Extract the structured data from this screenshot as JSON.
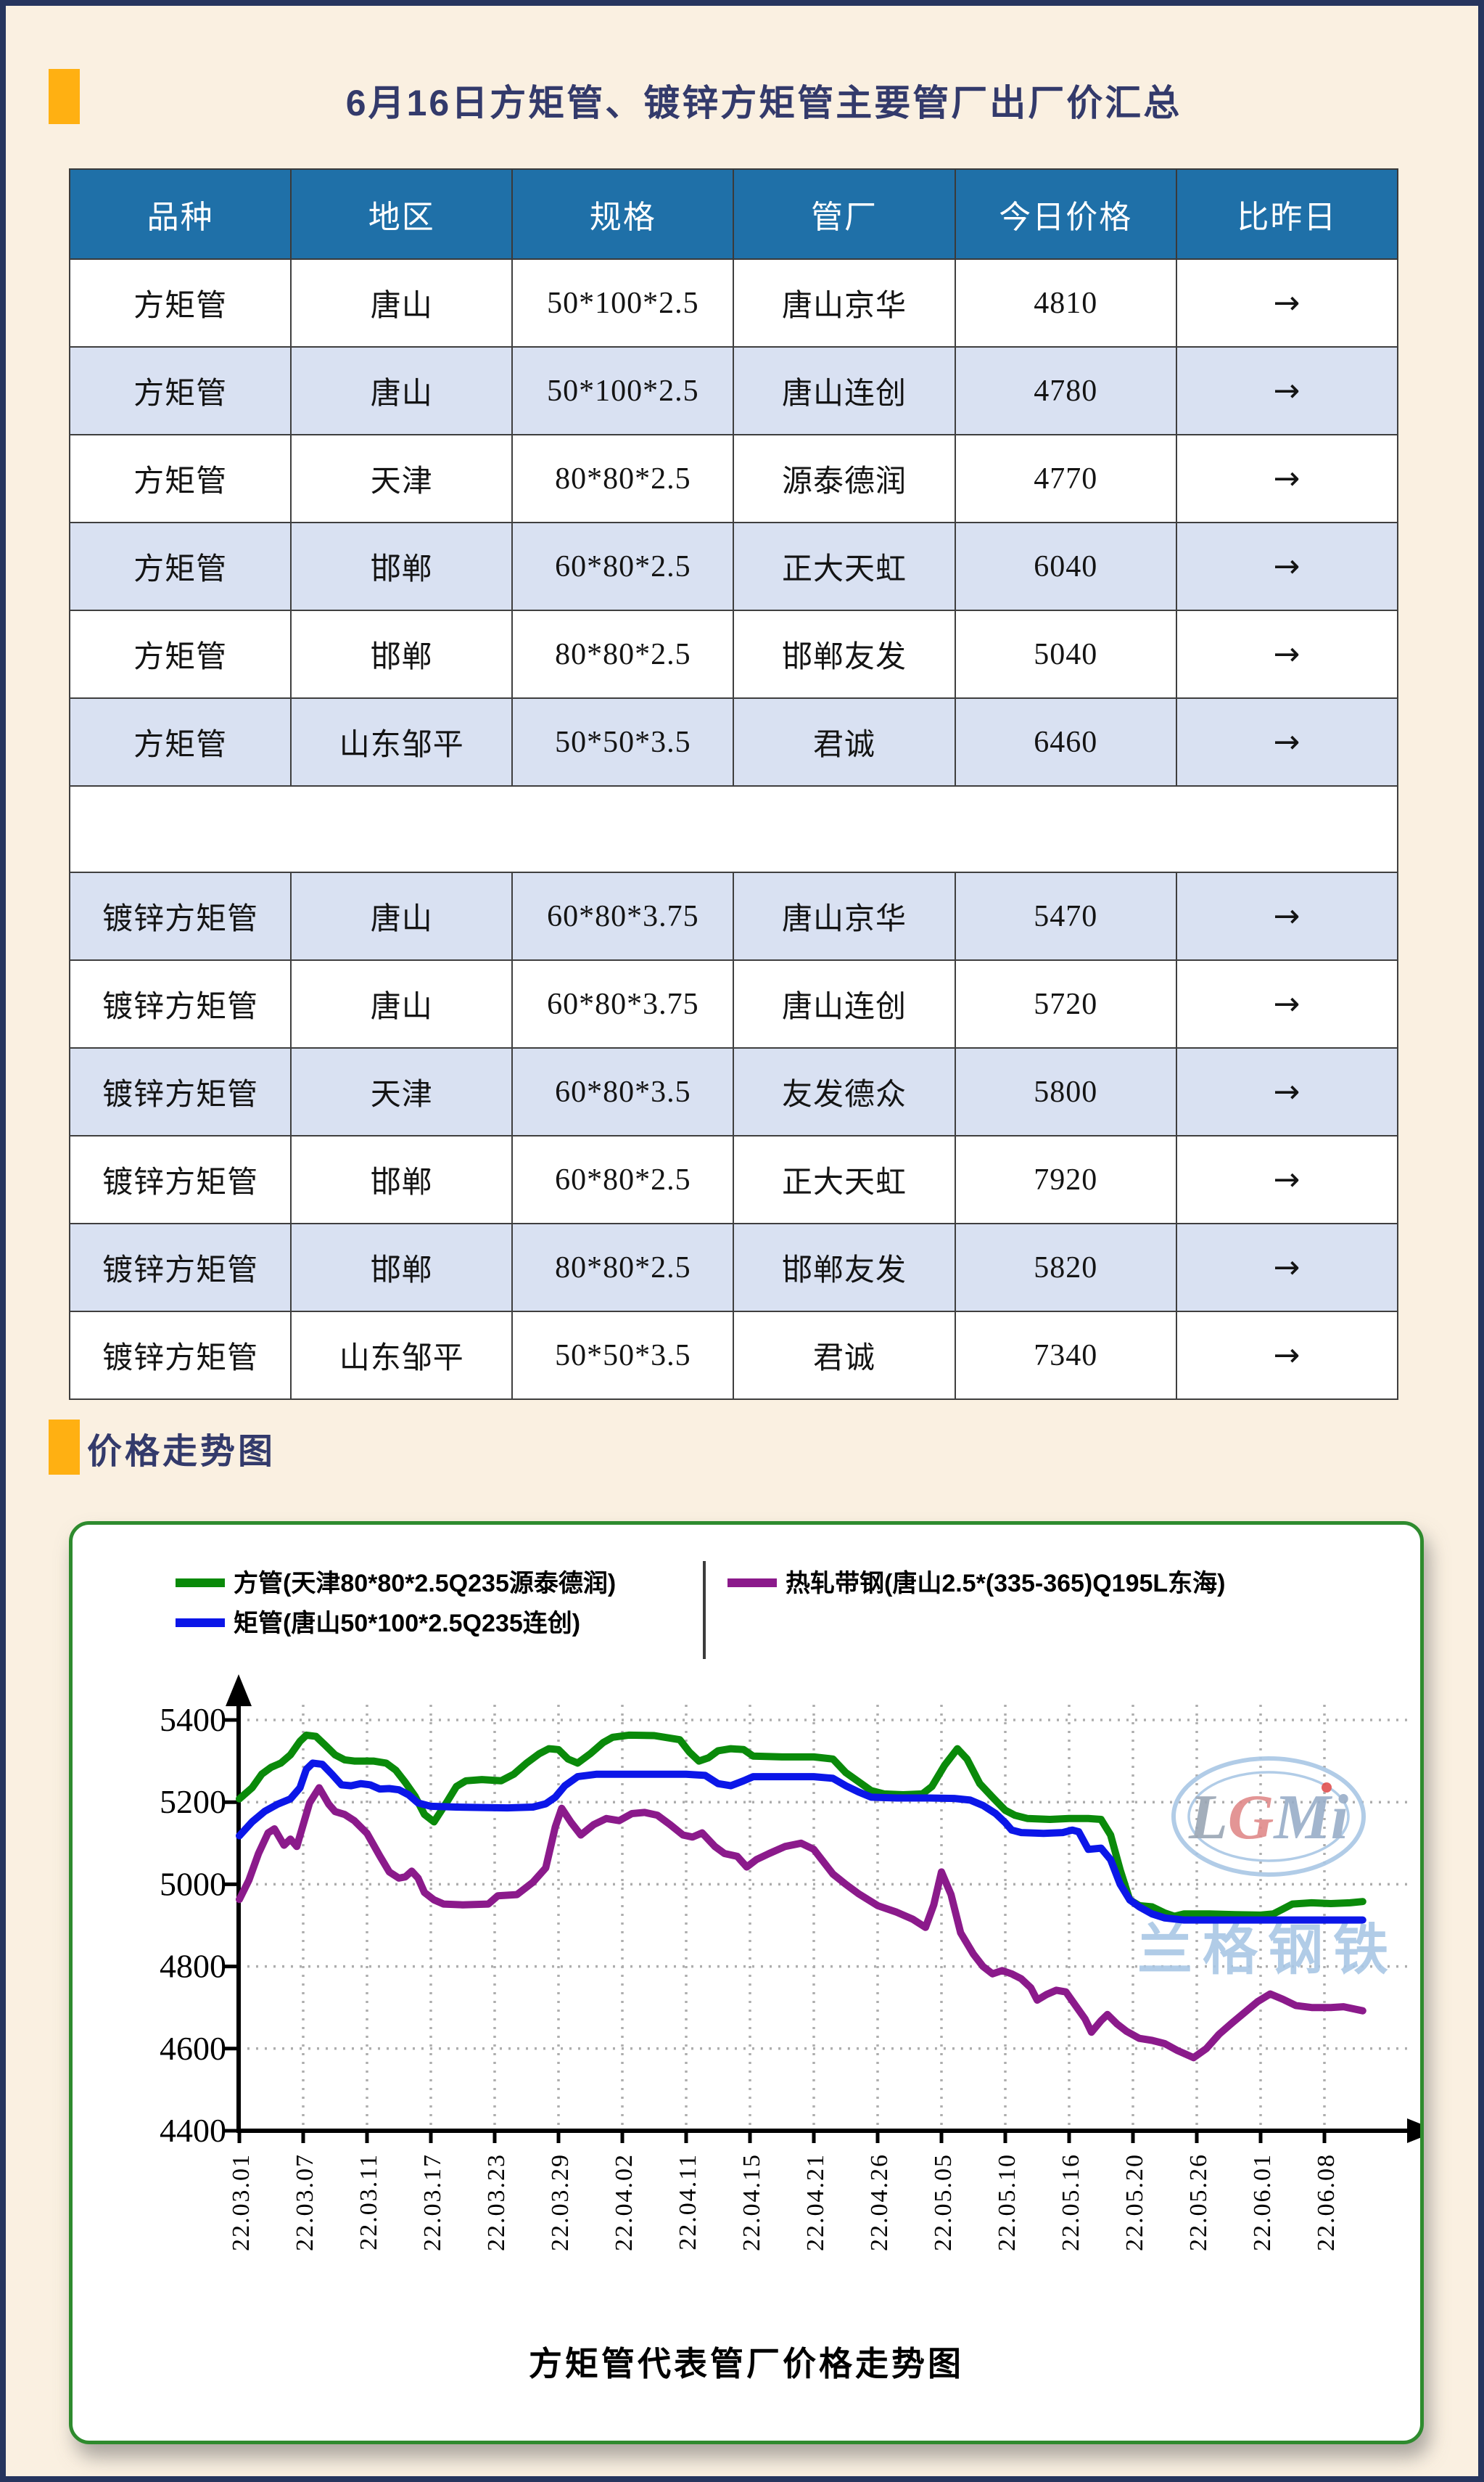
{
  "page": {
    "title": "6月16日方矩管、镀锌方矩管主要管厂出厂价汇总",
    "section2_title": "价格走势图",
    "colors": {
      "background": "#FAF0E1",
      "page_border": "#26355E",
      "accent_orange": "#FFB012",
      "title_navy": "#333A6B",
      "table_header_bg": "#1F70A8",
      "table_alt_row_bg": "#D9E1F2",
      "chart_card_border": "#2E8B2E"
    }
  },
  "table": {
    "headers": [
      "品种",
      "地区",
      "规格",
      "管厂",
      "今日价格",
      "比昨日"
    ],
    "rows": [
      {
        "alt": false,
        "cells": [
          "方矩管",
          "唐山",
          "50*100*2.5",
          "唐山京华",
          "4810",
          "→"
        ]
      },
      {
        "alt": true,
        "cells": [
          "方矩管",
          "唐山",
          "50*100*2.5",
          "唐山连创",
          "4780",
          "→"
        ]
      },
      {
        "alt": false,
        "cells": [
          "方矩管",
          "天津",
          "80*80*2.5",
          "源泰德润",
          "4770",
          "→"
        ]
      },
      {
        "alt": true,
        "cells": [
          "方矩管",
          "邯郸",
          "60*80*2.5",
          "正大天虹",
          "6040",
          "→"
        ]
      },
      {
        "alt": false,
        "cells": [
          "方矩管",
          "邯郸",
          "80*80*2.5",
          "邯郸友发",
          "5040",
          "→"
        ]
      },
      {
        "alt": true,
        "cells": [
          "方矩管",
          "山东邹平",
          "50*50*3.5",
          "君诚",
          "6460",
          "→"
        ]
      },
      {
        "separator": true
      },
      {
        "alt": true,
        "cells": [
          "镀锌方矩管",
          "唐山",
          "60*80*3.75",
          "唐山京华",
          "5470",
          "→"
        ]
      },
      {
        "alt": false,
        "cells": [
          "镀锌方矩管",
          "唐山",
          "60*80*3.75",
          "唐山连创",
          "5720",
          "→"
        ]
      },
      {
        "alt": true,
        "cells": [
          "镀锌方矩管",
          "天津",
          "60*80*3.5",
          "友发德众",
          "5800",
          "→"
        ]
      },
      {
        "alt": false,
        "cells": [
          "镀锌方矩管",
          "邯郸",
          "60*80*2.5",
          "正大天虹",
          "7920",
          "→"
        ]
      },
      {
        "alt": true,
        "cells": [
          "镀锌方矩管",
          "邯郸",
          "80*80*2.5",
          "邯郸友发",
          "5820",
          "→"
        ]
      },
      {
        "alt": false,
        "cells": [
          "镀锌方矩管",
          "山东邹平",
          "50*50*3.5",
          "君诚",
          "7340",
          "→"
        ]
      }
    ]
  },
  "chart_data": {
    "type": "line",
    "title": "方矩管代表管厂价格走势图",
    "ylabel": "",
    "xlabel": "",
    "ylim": [
      4400,
      5400
    ],
    "yticks": [
      4400,
      4600,
      4800,
      5000,
      5200,
      5400
    ],
    "grid": true,
    "legend_position": "top",
    "xticklabels": [
      "22.03.01",
      "22.03.07",
      "22.03.11",
      "22.03.17",
      "22.03.23",
      "22.03.29",
      "22.04.02",
      "22.04.11",
      "22.04.15",
      "22.04.21",
      "22.04.26",
      "22.05.05",
      "22.05.10",
      "22.05.16",
      "22.05.20",
      "22.05.26",
      "22.06.01",
      "22.06.08"
    ],
    "watermark": {
      "logo": "LGMI",
      "brand": "兰格钢铁",
      "color": "#A9C7E5"
    },
    "series": [
      {
        "name": "方管(天津80*80*2.5Q235源泰德润)",
        "color": "#0A8A0A",
        "points": [
          [
            0,
            5208
          ],
          [
            0.2,
            5235
          ],
          [
            0.35,
            5268
          ],
          [
            0.5,
            5285
          ],
          [
            0.65,
            5295
          ],
          [
            0.8,
            5315
          ],
          [
            0.95,
            5348
          ],
          [
            1.05,
            5363
          ],
          [
            1.2,
            5360
          ],
          [
            1.35,
            5338
          ],
          [
            1.5,
            5315
          ],
          [
            1.65,
            5303
          ],
          [
            1.8,
            5300
          ],
          [
            2.1,
            5300
          ],
          [
            2.3,
            5295
          ],
          [
            2.45,
            5278
          ],
          [
            2.6,
            5248
          ],
          [
            2.75,
            5215
          ],
          [
            2.9,
            5170
          ],
          [
            3.05,
            5152
          ],
          [
            3.25,
            5200
          ],
          [
            3.4,
            5238
          ],
          [
            3.55,
            5252
          ],
          [
            3.8,
            5255
          ],
          [
            4.1,
            5252
          ],
          [
            4.3,
            5268
          ],
          [
            4.5,
            5295
          ],
          [
            4.7,
            5318
          ],
          [
            4.85,
            5330
          ],
          [
            5,
            5328
          ],
          [
            5.15,
            5305
          ],
          [
            5.3,
            5295
          ],
          [
            5.5,
            5318
          ],
          [
            5.7,
            5345
          ],
          [
            5.85,
            5358
          ],
          [
            6.1,
            5363
          ],
          [
            6.5,
            5362
          ],
          [
            6.9,
            5352
          ],
          [
            7.05,
            5322
          ],
          [
            7.2,
            5300
          ],
          [
            7.35,
            5308
          ],
          [
            7.5,
            5325
          ],
          [
            7.7,
            5330
          ],
          [
            7.9,
            5328
          ],
          [
            8.05,
            5312
          ],
          [
            8.5,
            5310
          ],
          [
            9,
            5310
          ],
          [
            9.3,
            5305
          ],
          [
            9.5,
            5272
          ],
          [
            9.7,
            5250
          ],
          [
            9.9,
            5228
          ],
          [
            10.1,
            5220
          ],
          [
            10.4,
            5218
          ],
          [
            10.7,
            5220
          ],
          [
            10.85,
            5238
          ],
          [
            11.05,
            5290
          ],
          [
            11.25,
            5330
          ],
          [
            11.4,
            5305
          ],
          [
            11.6,
            5245
          ],
          [
            11.8,
            5212
          ],
          [
            12,
            5180
          ],
          [
            12.15,
            5168
          ],
          [
            12.35,
            5160
          ],
          [
            12.7,
            5158
          ],
          [
            13,
            5160
          ],
          [
            13.3,
            5160
          ],
          [
            13.5,
            5158
          ],
          [
            13.65,
            5120
          ],
          [
            13.8,
            5035
          ],
          [
            13.95,
            4962
          ],
          [
            14.1,
            4948
          ],
          [
            14.3,
            4945
          ],
          [
            14.5,
            4930
          ],
          [
            14.65,
            4922
          ],
          [
            14.8,
            4928
          ],
          [
            15.2,
            4928
          ],
          [
            15.6,
            4926
          ],
          [
            16,
            4925
          ],
          [
            16.2,
            4928
          ],
          [
            16.35,
            4940
          ],
          [
            16.5,
            4952
          ],
          [
            16.8,
            4955
          ],
          [
            17.1,
            4953
          ],
          [
            17.4,
            4955
          ],
          [
            17.6,
            4958
          ]
        ]
      },
      {
        "name": "矩管(唐山50*100*2.5Q235连创)",
        "color": "#0B16E8",
        "points": [
          [
            0,
            5118
          ],
          [
            0.2,
            5152
          ],
          [
            0.4,
            5178
          ],
          [
            0.6,
            5195
          ],
          [
            0.8,
            5208
          ],
          [
            0.95,
            5235
          ],
          [
            1.05,
            5280
          ],
          [
            1.15,
            5295
          ],
          [
            1.3,
            5292
          ],
          [
            1.45,
            5268
          ],
          [
            1.6,
            5242
          ],
          [
            1.75,
            5240
          ],
          [
            1.9,
            5245
          ],
          [
            2.05,
            5242
          ],
          [
            2.2,
            5232
          ],
          [
            2.35,
            5233
          ],
          [
            2.5,
            5230
          ],
          [
            2.65,
            5218
          ],
          [
            2.8,
            5198
          ],
          [
            3,
            5190
          ],
          [
            3.4,
            5188
          ],
          [
            3.8,
            5187
          ],
          [
            4.2,
            5186
          ],
          [
            4.6,
            5188
          ],
          [
            4.8,
            5196
          ],
          [
            4.95,
            5212
          ],
          [
            5.1,
            5240
          ],
          [
            5.3,
            5262
          ],
          [
            5.6,
            5268
          ],
          [
            6,
            5268
          ],
          [
            6.5,
            5268
          ],
          [
            7,
            5268
          ],
          [
            7.3,
            5265
          ],
          [
            7.5,
            5245
          ],
          [
            7.7,
            5240
          ],
          [
            7.9,
            5252
          ],
          [
            8.05,
            5262
          ],
          [
            8.5,
            5262
          ],
          [
            9,
            5262
          ],
          [
            9.3,
            5258
          ],
          [
            9.5,
            5240
          ],
          [
            9.7,
            5225
          ],
          [
            9.9,
            5212
          ],
          [
            10.3,
            5210
          ],
          [
            10.8,
            5210
          ],
          [
            11.2,
            5209
          ],
          [
            11.45,
            5205
          ],
          [
            11.65,
            5192
          ],
          [
            11.85,
            5172
          ],
          [
            12,
            5150
          ],
          [
            12.1,
            5132
          ],
          [
            12.25,
            5126
          ],
          [
            12.6,
            5124
          ],
          [
            12.9,
            5126
          ],
          [
            13.05,
            5132
          ],
          [
            13.15,
            5128
          ],
          [
            13.3,
            5085
          ],
          [
            13.5,
            5088
          ],
          [
            13.65,
            5060
          ],
          [
            13.8,
            5000
          ],
          [
            13.95,
            4962
          ],
          [
            14.1,
            4945
          ],
          [
            14.3,
            4928
          ],
          [
            14.5,
            4918
          ],
          [
            14.8,
            4913
          ],
          [
            15.3,
            4913
          ],
          [
            15.8,
            4913
          ],
          [
            16.3,
            4913
          ],
          [
            16.8,
            4913
          ],
          [
            17.3,
            4913
          ],
          [
            17.6,
            4913
          ]
        ]
      },
      {
        "name": "热轧带钢(唐山2.5*(335-365)Q195L东海)",
        "color": "#8B1A8B",
        "points": [
          [
            0,
            4963
          ],
          [
            0.15,
            5010
          ],
          [
            0.3,
            5075
          ],
          [
            0.45,
            5125
          ],
          [
            0.55,
            5135
          ],
          [
            0.7,
            5095
          ],
          [
            0.8,
            5110
          ],
          [
            0.9,
            5092
          ],
          [
            1.1,
            5198
          ],
          [
            1.25,
            5235
          ],
          [
            1.4,
            5195
          ],
          [
            1.5,
            5177
          ],
          [
            1.65,
            5170
          ],
          [
            1.8,
            5155
          ],
          [
            2,
            5124
          ],
          [
            2.2,
            5069
          ],
          [
            2.35,
            5030
          ],
          [
            2.5,
            5015
          ],
          [
            2.6,
            5018
          ],
          [
            2.7,
            5032
          ],
          [
            2.8,
            5015
          ],
          [
            2.9,
            4980
          ],
          [
            3.05,
            4962
          ],
          [
            3.2,
            4952
          ],
          [
            3.5,
            4950
          ],
          [
            3.9,
            4952
          ],
          [
            4.05,
            4972
          ],
          [
            4.35,
            4975
          ],
          [
            4.6,
            5005
          ],
          [
            4.8,
            5040
          ],
          [
            4.95,
            5140
          ],
          [
            5.05,
            5185
          ],
          [
            5.2,
            5150
          ],
          [
            5.35,
            5120
          ],
          [
            5.55,
            5145
          ],
          [
            5.75,
            5160
          ],
          [
            5.95,
            5155
          ],
          [
            6.15,
            5172
          ],
          [
            6.35,
            5175
          ],
          [
            6.55,
            5168
          ],
          [
            6.75,
            5145
          ],
          [
            6.95,
            5120
          ],
          [
            7.1,
            5115
          ],
          [
            7.25,
            5125
          ],
          [
            7.45,
            5092
          ],
          [
            7.6,
            5075
          ],
          [
            7.8,
            5068
          ],
          [
            7.95,
            5042
          ],
          [
            8.1,
            5060
          ],
          [
            8.3,
            5075
          ],
          [
            8.55,
            5092
          ],
          [
            8.8,
            5100
          ],
          [
            9,
            5085
          ],
          [
            9.3,
            5025
          ],
          [
            9.5,
            5000
          ],
          [
            9.7,
            4977
          ],
          [
            10,
            4948
          ],
          [
            10.3,
            4932
          ],
          [
            10.55,
            4915
          ],
          [
            10.75,
            4895
          ],
          [
            10.88,
            4950
          ],
          [
            11,
            5030
          ],
          [
            11.15,
            4975
          ],
          [
            11.3,
            4882
          ],
          [
            11.5,
            4830
          ],
          [
            11.65,
            4800
          ],
          [
            11.8,
            4782
          ],
          [
            11.95,
            4790
          ],
          [
            12.1,
            4782
          ],
          [
            12.25,
            4770
          ],
          [
            12.4,
            4748
          ],
          [
            12.5,
            4718
          ],
          [
            12.65,
            4732
          ],
          [
            12.8,
            4742
          ],
          [
            12.95,
            4738
          ],
          [
            13.1,
            4705
          ],
          [
            13.25,
            4672
          ],
          [
            13.35,
            4640
          ],
          [
            13.5,
            4668
          ],
          [
            13.6,
            4683
          ],
          [
            13.75,
            4660
          ],
          [
            13.9,
            4642
          ],
          [
            14.1,
            4625
          ],
          [
            14.3,
            4620
          ],
          [
            14.5,
            4612
          ],
          [
            14.7,
            4595
          ],
          [
            14.95,
            4578
          ],
          [
            15.15,
            4600
          ],
          [
            15.35,
            4635
          ],
          [
            15.55,
            4662
          ],
          [
            15.75,
            4688
          ],
          [
            15.95,
            4714
          ],
          [
            16.15,
            4733
          ],
          [
            16.35,
            4720
          ],
          [
            16.55,
            4705
          ],
          [
            16.8,
            4700
          ],
          [
            17.1,
            4700
          ],
          [
            17.3,
            4702
          ],
          [
            17.6,
            4692
          ]
        ]
      }
    ]
  }
}
